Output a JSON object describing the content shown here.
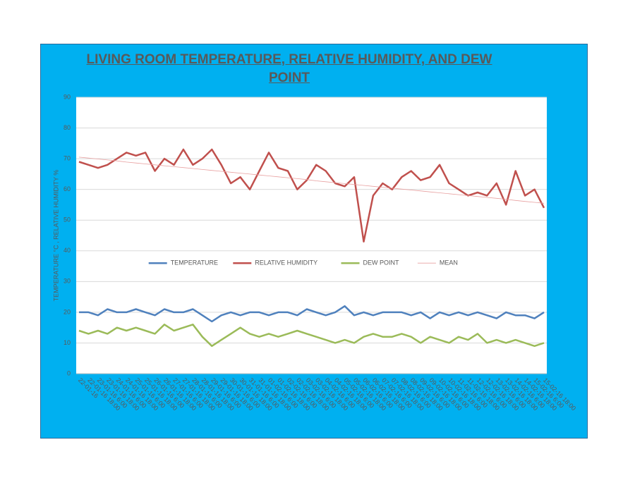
{
  "chart_data": {
    "type": "line",
    "title": "LIVING ROOM TEMPERATURE, RELATIVE HUMIDITY, AND DEW POINT",
    "y_label": "TEMPERATURE °C , RELATIVE HUMIDITY %",
    "categories": [
      "22-01-16",
      "22-01-16 18:00",
      "23-01-16 6:00",
      "23-01-16 18:00",
      "24-01-16 6:00",
      "24-01-16 18:00",
      "25-01-16 6:00",
      "25-01-16 18:00",
      "26-01-16 6:00",
      "26-01-16 18:00",
      "27-01-16 6:00",
      "27-01-16 18:00",
      "28-01-16 6:00",
      "28-01-16 18:00",
      "29-01-16 6:00",
      "29-01-16 18:00",
      "30-01-16 6:00",
      "30-01-16 18:00",
      "31-01-16 6:00",
      "31-01-16 18:00",
      "01-02-16 6:00",
      "01-02-16 18:00",
      "02-02-16 6:00",
      "02-02-16 18:00",
      "03-02-16 6:00",
      "03-02-16 18:00",
      "04-02-16 6:00",
      "04-02-16 18:00",
      "05-02-16 6:00",
      "05-02-16 18:00",
      "06-02-16 6:00",
      "06-02-16 18:00",
      "07-02-16 6:00",
      "07-02-16 18:00",
      "08-02-16 6:00",
      "08-02-16 18:00",
      "09-02-16 6:00",
      "09-02-16 18:00",
      "10-02-16 6:00",
      "10-02-16 18:00",
      "11-02-16 6:00",
      "11-02-16 18:00",
      "12-02-16 6:00",
      "12-02-16 18:00",
      "13-02-16 6:00",
      "13-02-16 18:00",
      "14-02-16 6:00",
      "14-02-16 18:00",
      "15-02-16 6:00",
      "15-02-16 18:00"
    ],
    "series": [
      {
        "name": "TEMPERATURE",
        "color": "#4f81bd",
        "width": 2.5,
        "values": [
          20,
          20,
          19,
          21,
          20,
          20,
          21,
          20,
          19,
          21,
          20,
          20,
          21,
          19,
          17,
          19,
          20,
          19,
          20,
          20,
          19,
          20,
          20,
          19,
          21,
          20,
          19,
          20,
          22,
          19,
          20,
          19,
          20,
          20,
          20,
          19,
          20,
          18,
          20,
          19,
          20,
          19,
          20,
          19,
          18,
          20,
          19,
          19,
          18,
          20
        ]
      },
      {
        "name": "RELATIVE HUMIDITY",
        "color": "#c0504d",
        "width": 2.5,
        "values": [
          69,
          68,
          67,
          68,
          70,
          72,
          71,
          72,
          66,
          70,
          68,
          73,
          68,
          70,
          73,
          68,
          62,
          64,
          60,
          66,
          72,
          67,
          66,
          60,
          63,
          68,
          66,
          62,
          61,
          64,
          43,
          58,
          62,
          60,
          64,
          66,
          63,
          64,
          68,
          62,
          60,
          58,
          59,
          58,
          62,
          55,
          66,
          58,
          60,
          54
        ]
      },
      {
        "name": "DEW POINT",
        "color": "#9bbb59",
        "width": 2.5,
        "values": [
          14,
          13,
          14,
          13,
          15,
          14,
          15,
          14,
          13,
          16,
          14,
          15,
          16,
          12,
          9,
          11,
          13,
          15,
          13,
          12,
          13,
          12,
          13,
          14,
          13,
          12,
          11,
          10,
          11,
          10,
          12,
          13,
          12,
          12,
          13,
          12,
          10,
          12,
          11,
          10,
          12,
          11,
          13,
          10,
          11,
          10,
          11,
          10,
          9,
          10
        ]
      },
      {
        "name": "MEAN",
        "color": "#e8a0a0",
        "width": 0.8,
        "values": [
          70.5,
          70.2,
          69.9,
          69.6,
          69.3,
          68.9,
          68.6,
          68.3,
          68.0,
          67.7,
          67.4,
          67.1,
          66.8,
          66.5,
          66.2,
          65.9,
          65.6,
          65.3,
          65.0,
          64.7,
          64.4,
          64.1,
          63.8,
          63.5,
          63.2,
          62.8,
          62.5,
          62.2,
          61.9,
          61.6,
          61.3,
          61.0,
          60.7,
          60.4,
          60.1,
          59.8,
          59.5,
          59.2,
          58.9,
          58.6,
          58.3,
          58.0,
          57.7,
          57.4,
          57.1,
          56.8,
          56.4,
          56.1,
          55.8,
          55.5
        ]
      }
    ],
    "ylim": [
      0,
      90
    ],
    "yticks": [
      0,
      10,
      20,
      30,
      40,
      50,
      60,
      70,
      80,
      90
    ],
    "grid": true,
    "legend": "center"
  }
}
